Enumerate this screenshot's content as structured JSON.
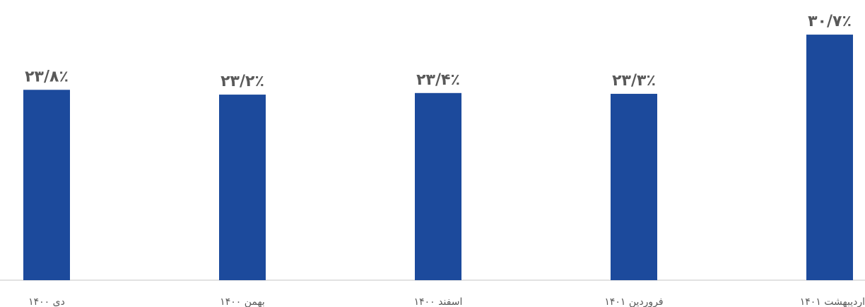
{
  "chart_data": {
    "type": "bar",
    "categories": [
      "دی ۱۴۰۰",
      "بهمن ۱۴۰۰",
      "اسفند ۱۴۰۰",
      "فروردین ۱۴۰۱",
      "اردیبهشت ۱۴۰۱"
    ],
    "values": [
      23.8,
      23.2,
      23.4,
      23.3,
      30.7
    ],
    "value_labels": [
      "۲۳/۸٪",
      "۲۳/۲٪",
      "۲۳/۴٪",
      "۲۳/۳٪",
      "۳۰/۷٪"
    ],
    "ylim": [
      0,
      31.5
    ],
    "grid": false,
    "legend": "none",
    "colors": {
      "bar": "#1c4a9c",
      "axis": "#d9d9d9",
      "text": "#595959"
    }
  }
}
